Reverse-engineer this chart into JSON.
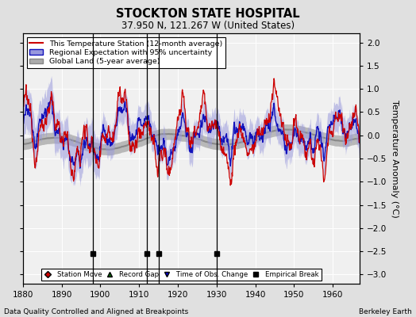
{
  "title": "STOCKTON STATE HOSPITAL",
  "subtitle": "37.950 N, 121.267 W (United States)",
  "xlabel_bottom": "Data Quality Controlled and Aligned at Breakpoints",
  "xlabel_right": "Berkeley Earth",
  "ylabel": "Temperature Anomaly (°C)",
  "xmin": 1880,
  "xmax": 1967,
  "ymin": -3.2,
  "ymax": 2.2,
  "yticks": [
    -3,
    -2.5,
    -2,
    -1.5,
    -1,
    -0.5,
    0,
    0.5,
    1,
    1.5,
    2
  ],
  "xticks": [
    1880,
    1890,
    1900,
    1910,
    1920,
    1930,
    1940,
    1950,
    1960
  ],
  "background_color": "#e0e0e0",
  "plot_background": "#f0f0f0",
  "grid_color": "#ffffff",
  "red_line_color": "#cc0000",
  "blue_line_color": "#1111bb",
  "blue_fill_color": "#9999dd",
  "gray_fill_color": "#aaaaaa",
  "gray_line_color": "#888888",
  "legend_items": [
    "This Temperature Station (12-month average)",
    "Regional Expectation with 95% uncertainty",
    "Global Land (5-year average)"
  ],
  "empirical_breaks": [
    1898,
    1912,
    1915,
    1930
  ],
  "seed": 12345
}
